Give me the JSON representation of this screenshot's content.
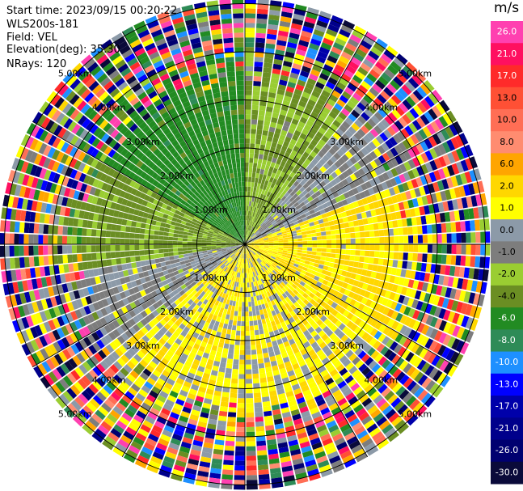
{
  "header": {
    "start_time": "Start time: 2023/09/15 00:20:22",
    "instrument": "WLS200s-181",
    "field": "Field: VEL",
    "elevation": "Elevation(deg): 35.30",
    "nrays": "NRays: 120"
  },
  "chart_data": {
    "type": "heatmap",
    "projection": "polar-ppi",
    "nrays": 120,
    "range_rings_km": [
      1,
      2,
      3,
      4,
      5
    ],
    "ring_labels": [
      "1.00km",
      "2.00km",
      "3.00km",
      "4.00km",
      "5.00km"
    ],
    "max_range_km": 5.1,
    "grid": true,
    "spokes_deg": [
      0,
      30,
      60,
      90,
      120,
      150,
      180,
      210,
      240,
      270,
      300,
      330
    ],
    "colorbar": {
      "title": "m/s",
      "ticks": [
        "26.0",
        "21.0",
        "17.0",
        "13.0",
        "10.0",
        "8.0",
        "6.0",
        "2.0",
        "1.0",
        "0.0",
        "-1.0",
        "-2.0",
        "-4.0",
        "-6.0",
        "-8.0",
        "-10.0",
        "-13.0",
        "-17.0",
        "-21.0",
        "-26.0",
        "-30.0"
      ],
      "colors": [
        "#ff40b0",
        "#ff1060",
        "#ff2a2a",
        "#ff5035",
        "#ff6e55",
        "#ff8c70",
        "#ffa500",
        "#ffd700",
        "#ffff00",
        "#8c9aa8",
        "#7d7d7d",
        "#9acd32",
        "#6b8e23",
        "#228b22",
        "#2e8b57",
        "#1e90ff",
        "#0000ff",
        "#0000aa",
        "#00008b",
        "#000070",
        "#0a0a3a"
      ]
    },
    "regions": [
      {
        "from_deg": 300,
        "to_deg": 360,
        "near_value": -5.0,
        "comment_color": "green"
      },
      {
        "from_deg": 0,
        "to_deg": 40,
        "near_value": -2.0
      },
      {
        "from_deg": 40,
        "to_deg": 70,
        "near_value": 0.0
      },
      {
        "from_deg": 70,
        "to_deg": 130,
        "near_value": 2.0
      },
      {
        "from_deg": 130,
        "to_deg": 230,
        "near_value": 1.5
      },
      {
        "from_deg": 230,
        "to_deg": 260,
        "near_value": 0.0
      },
      {
        "from_deg": 260,
        "to_deg": 300,
        "near_value": -2.5
      }
    ],
    "noise_start_km": 3.3
  },
  "colors": {
    "ring": "#000000",
    "background": "#ffffff"
  }
}
